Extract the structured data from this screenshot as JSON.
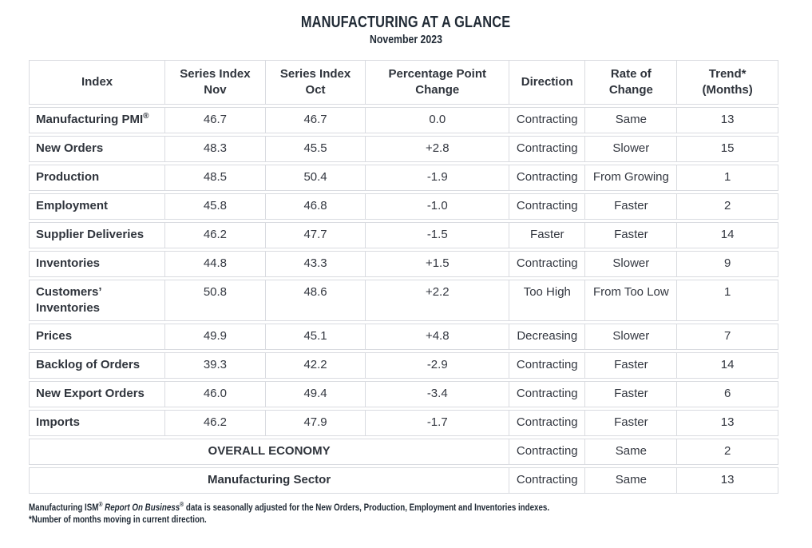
{
  "chart_data": {
    "type": "table",
    "title": "MANUFACTURING AT A GLANCE",
    "subtitle": "November 2023",
    "columns": {
      "index": "Index",
      "nov": "Series Index\nNov",
      "oct": "Series Index\nOct",
      "change": "Percentage Point\nChange",
      "direction": "Direction",
      "rate": "Rate of\nChange",
      "trend": "Trend*\n(Months)"
    },
    "rows": [
      {
        "label": "Manufacturing PMI",
        "label_sup": "®",
        "nov": "46.7",
        "oct": "46.7",
        "change": "0.0",
        "direction": "Contracting",
        "rate": "Same",
        "trend": "13"
      },
      {
        "label": "New Orders",
        "nov": "48.3",
        "oct": "45.5",
        "change": "+2.8",
        "direction": "Contracting",
        "rate": "Slower",
        "trend": "15"
      },
      {
        "label": "Production",
        "nov": "48.5",
        "oct": "50.4",
        "change": "-1.9",
        "direction": "Contracting",
        "rate": "From Growing",
        "trend": "1"
      },
      {
        "label": "Employment",
        "nov": "45.8",
        "oct": "46.8",
        "change": "-1.0",
        "direction": "Contracting",
        "rate": "Faster",
        "trend": "2"
      },
      {
        "label": "Supplier Deliveries",
        "nov": "46.2",
        "oct": "47.7",
        "change": "-1.5",
        "direction": "Faster",
        "rate": "Faster",
        "trend": "14"
      },
      {
        "label": "Inventories",
        "nov": "44.8",
        "oct": "43.3",
        "change": "+1.5",
        "direction": "Contracting",
        "rate": "Slower",
        "trend": "9"
      },
      {
        "label": "Customers’\nInventories",
        "nov": "50.8",
        "oct": "48.6",
        "change": "+2.2",
        "direction": "Too High",
        "rate": "From Too Low",
        "trend": "1"
      },
      {
        "label": "Prices",
        "nov": "49.9",
        "oct": "45.1",
        "change": "+4.8",
        "direction": "Decreasing",
        "rate": "Slower",
        "trend": "7"
      },
      {
        "label": "Backlog of Orders",
        "nov": "39.3",
        "oct": "42.2",
        "change": "-2.9",
        "direction": "Contracting",
        "rate": "Faster",
        "trend": "14"
      },
      {
        "label": "New Export Orders",
        "nov": "46.0",
        "oct": "49.4",
        "change": "-3.4",
        "direction": "Contracting",
        "rate": "Faster",
        "trend": "6"
      },
      {
        "label": "Imports",
        "nov": "46.2",
        "oct": "47.9",
        "change": "-1.7",
        "direction": "Contracting",
        "rate": "Faster",
        "trend": "13"
      }
    ],
    "summary_rows": [
      {
        "label": "OVERALL ECONOMY",
        "direction": "Contracting",
        "rate": "Same",
        "trend": "2"
      },
      {
        "label": "Manufacturing Sector",
        "direction": "Contracting",
        "rate": "Same",
        "trend": "13"
      }
    ],
    "footnotes": {
      "line1_part1": "Manufacturing ISM",
      "line1_sup1": "®",
      "line1_italic": " Report On Business",
      "line1_sup2": "®",
      "line1_part2": " data is seasonally adjusted for the New Orders, Production, Employment and Inventories indexes.",
      "line2": "*Number of months moving in current direction."
    },
    "layout": {
      "grid": "bordered-rows-with-gaps",
      "legend_position": "none"
    },
    "colors": {
      "heading_text": "#212b36",
      "body_text": "#333740",
      "border": "#d9dbe0",
      "background": "#ffffff"
    }
  }
}
